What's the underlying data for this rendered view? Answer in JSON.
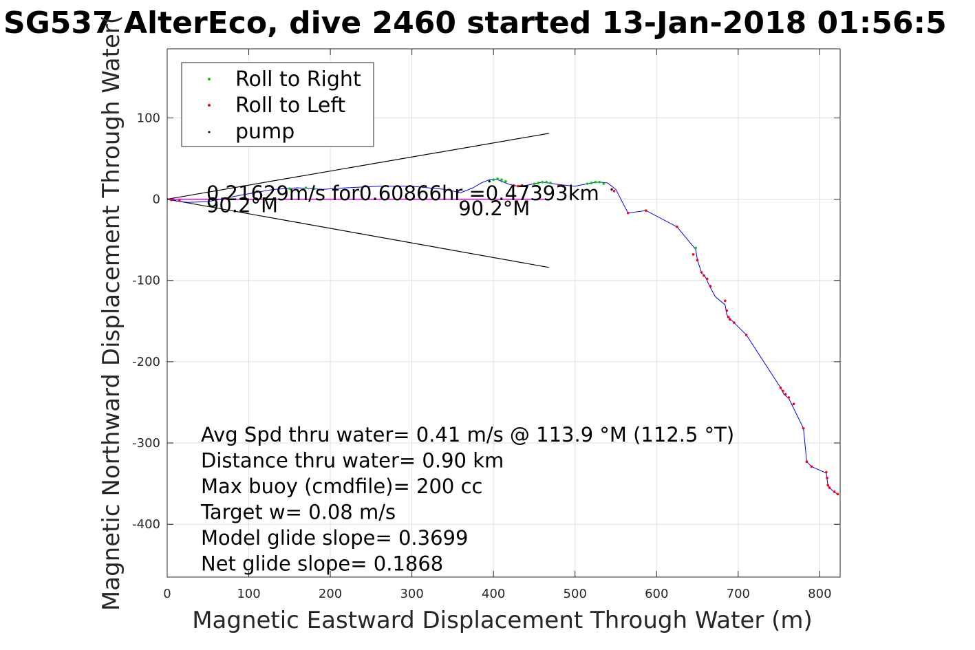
{
  "chart_data": {
    "type": "scatter",
    "title": "SG537 AlterEco, dive 2460 started 13-Jan-2018 01:56:5",
    "xlabel": "Magnetic Eastward Displacement Through Water (m)",
    "ylabel": "Magnetic Northward Displacement Through Water(",
    "xlim": [
      0,
      825
    ],
    "ylim": [
      -465,
      185
    ],
    "xticks": [
      "0",
      "100",
      "200",
      "300",
      "400",
      "500",
      "600",
      "700",
      "800"
    ],
    "yticks": [
      "100",
      "0",
      "-100",
      "-200",
      "-300",
      "-400"
    ],
    "grid": true,
    "legend_position": "top-left",
    "colors": {
      "track": "#0000ff",
      "roll_right": "#00cc00",
      "roll_left": "#ff0000",
      "pump": "#000000",
      "current": "#cc00cc",
      "cone": "#000000"
    },
    "legend": [
      "Roll to Right",
      "Roll to Left",
      "pump"
    ],
    "track": {
      "x": [
        0,
        10,
        25,
        50,
        90,
        130,
        160,
        190,
        220,
        260,
        300,
        340,
        360,
        375,
        385,
        395,
        400,
        405,
        410,
        420,
        430,
        440,
        460,
        480,
        500,
        520,
        530,
        540,
        550,
        565,
        587,
        625,
        648,
        650,
        655,
        660,
        665,
        672,
        684,
        686,
        690,
        695,
        710,
        752,
        756,
        762,
        780,
        784,
        790,
        808,
        810,
        815,
        822
      ],
      "y": [
        0,
        -2,
        -4,
        -3,
        5,
        12,
        14,
        12,
        14,
        16,
        16,
        12,
        8,
        14,
        20,
        24,
        25,
        24,
        22,
        18,
        16,
        17,
        21,
        18,
        16,
        20,
        21,
        20,
        12,
        -17,
        -14,
        -34,
        -62,
        -75,
        -90,
        -96,
        -107,
        -120,
        -130,
        -142,
        -147,
        -152,
        -167,
        -232,
        -240,
        -245,
        -282,
        -323,
        -329,
        -337,
        -352,
        -358,
        -363
      ]
    },
    "roll_right_points": {
      "x": [
        395,
        400,
        405,
        410,
        415,
        450,
        455,
        460,
        465,
        470,
        515,
        520,
        525,
        530,
        535,
        648,
        150,
        170,
        180
      ],
      "y": [
        22,
        24,
        25,
        24,
        22,
        19,
        20,
        21,
        21,
        20,
        19,
        20,
        21,
        21,
        19,
        -60,
        13,
        14,
        13
      ]
    },
    "roll_left_points": {
      "x": [
        425,
        430,
        435,
        480,
        485,
        545,
        548,
        565,
        587,
        625,
        645,
        650,
        655,
        658,
        662,
        666,
        684,
        686,
        688,
        690,
        695,
        710,
        752,
        755,
        758,
        762,
        768,
        780,
        784,
        790,
        808,
        809,
        810,
        812,
        818,
        822,
        5,
        15
      ],
      "y": [
        17,
        16,
        17,
        17,
        16,
        12,
        10,
        -17,
        -14,
        -34,
        -68,
        -75,
        -90,
        -94,
        -98,
        -107,
        -125,
        -137,
        -145,
        -148,
        -152,
        -167,
        -232,
        -236,
        -240,
        -244,
        -252,
        -282,
        -323,
        -329,
        -336,
        -343,
        -352,
        -355,
        -360,
        -363,
        -1,
        -2
      ]
    },
    "pump_points": {
      "x": [
        0,
        395,
        545
      ],
      "y": [
        0,
        22,
        12
      ]
    },
    "current_line": {
      "x": [
        0,
        470
      ],
      "y": [
        0,
        0
      ]
    },
    "cone": {
      "upper": {
        "x": [
          0,
          468
        ],
        "y": [
          0,
          81
        ]
      },
      "lower": {
        "x": [
          0,
          468
        ],
        "y": [
          0,
          -84
        ]
      }
    },
    "annotations": [
      {
        "text": "0.21629m/s for0.60866hr =0.47393km",
        "x": 48,
        "y": -1
      },
      {
        "text": "90.2°M",
        "x": 48,
        "y": -16
      },
      {
        "text": "90.2°M",
        "x": 357,
        "y": -20
      }
    ],
    "info_lines": [
      "Avg Spd thru water=  0.41 m/s @ 113.9 °M (112.5 °T)",
      "Distance thru water=  0.90 km",
      "Max buoy (cmdfile)= 200 cc",
      "Target w= 0.08 m/s",
      "Model glide slope= 0.3699",
      "Net glide slope= 0.1868"
    ]
  }
}
